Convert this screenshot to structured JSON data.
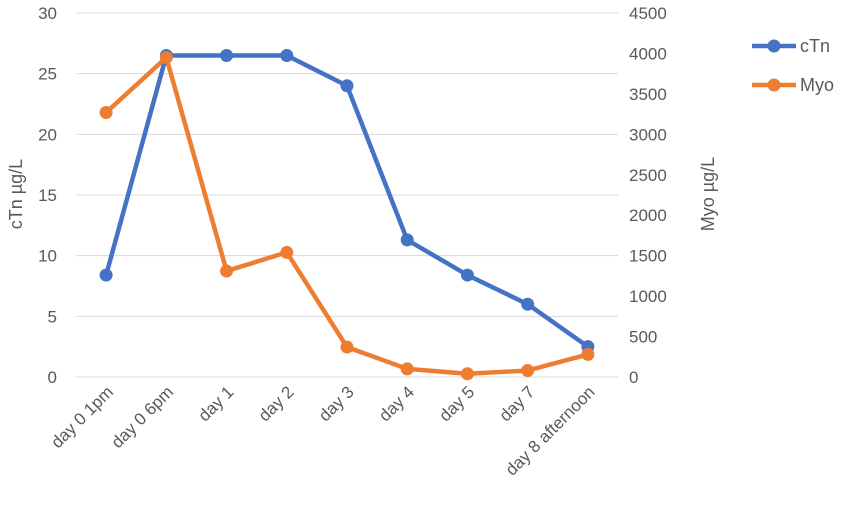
{
  "chart_data": {
    "type": "line",
    "categories": [
      "day 0 1pm",
      "day 0  6pm",
      "day 1",
      "day 2",
      "day 3",
      "day 4",
      "day 5",
      "day 7",
      "day 8 afternoon"
    ],
    "series": [
      {
        "name": "cTn",
        "axis": "left",
        "color": "#4472C4",
        "values": [
          8.4,
          26.5,
          26.5,
          26.5,
          24.0,
          11.3,
          8.4,
          6.0,
          2.5
        ]
      },
      {
        "name": "Myo",
        "axis": "right",
        "color": "#ED7D31",
        "values": [
          3270,
          3950,
          1310,
          1540,
          370,
          100,
          40,
          80,
          280
        ]
      }
    ],
    "ylabel": "cTn µg/L",
    "y2label": "Myo µg/L",
    "ylim": [
      0,
      30
    ],
    "y2lim": [
      0,
      4500
    ],
    "yticks": [
      "0",
      "5",
      "10",
      "15",
      "20",
      "25",
      "30"
    ],
    "y2ticks": [
      "0",
      "500",
      "1000",
      "1500",
      "2000",
      "2500",
      "3000",
      "3500",
      "4000",
      "4500"
    ],
    "grid": true,
    "legend_position": "top-right"
  }
}
